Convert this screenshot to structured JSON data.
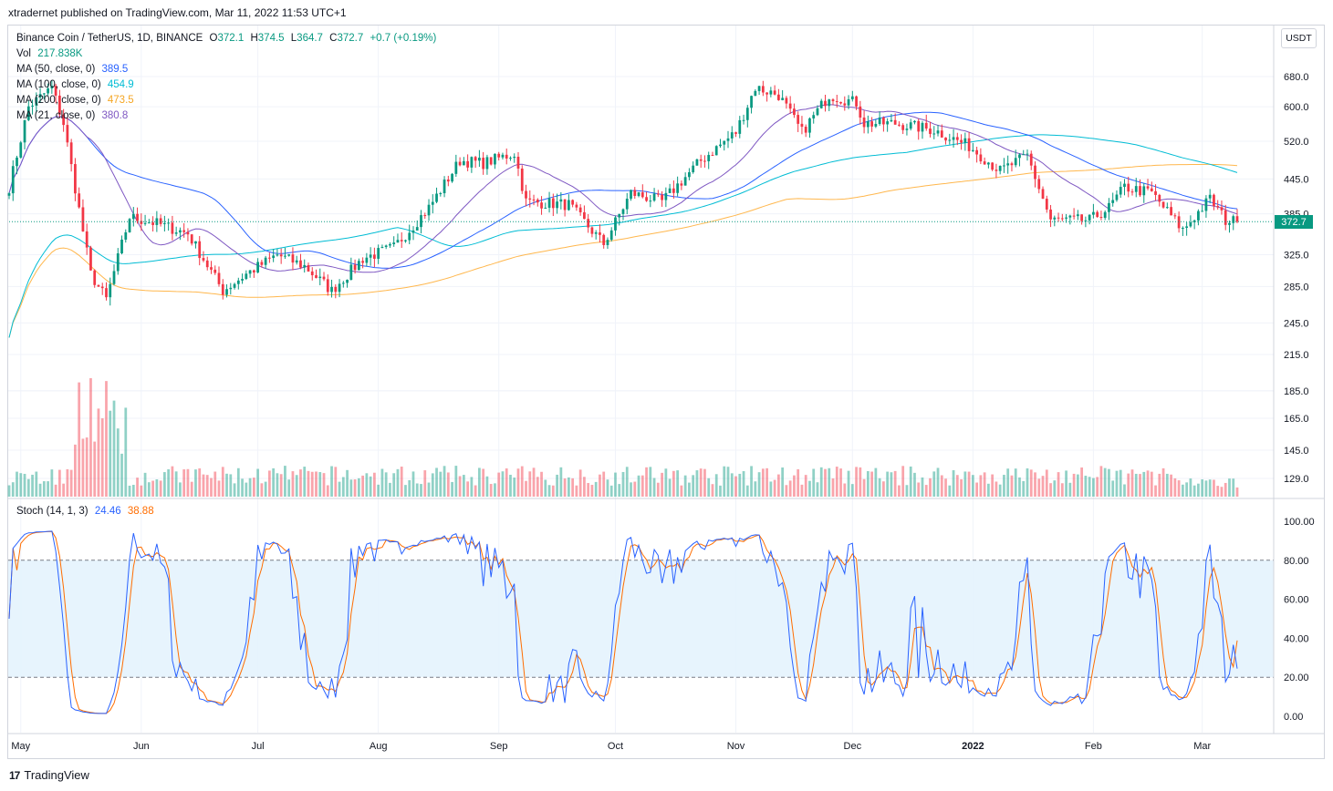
{
  "publisher": "xtradernet published on TradingView.com, Mar 11, 2022 11:53 UTC+1",
  "symbol": {
    "name": "Binance Coin / TetherUS, 1D, BINANCE",
    "open_label": "O",
    "open": "372.1",
    "high_label": "H",
    "high": "374.5",
    "low_label": "L",
    "low": "364.7",
    "close_label": "C",
    "close": "372.7",
    "change": "+0.7 (+0.19%)"
  },
  "indicators": {
    "vol_label": "Vol",
    "vol_value": "217.838K",
    "ma50_label": "MA (50, close, 0)",
    "ma50_value": "389.5",
    "ma100_label": "MA (100, close, 0)",
    "ma100_value": "454.9",
    "ma200_label": "MA (200, close, 0)",
    "ma200_value": "473.5",
    "ma21_label": "MA (21, close, 0)",
    "ma21_value": "380.8",
    "stoch_label": "Stoch (14, 1, 3)",
    "stoch_k_value": "24.46",
    "stoch_d_value": "38.88"
  },
  "currency_button": "USDT",
  "last_price_tag": "372.7",
  "footer": {
    "logo_glyph": "17",
    "brand": "TradingView"
  },
  "colors": {
    "up": "#089981",
    "down": "#f23645",
    "ma50": "#2962ff",
    "ma100": "#00bcd4",
    "ma200": "#ffb74d",
    "ma21": "#7e57c2",
    "stoch_k": "#2962ff",
    "stoch_d": "#ff6d00",
    "stoch_band": "#e3f2fd"
  },
  "chart_data": [
    {
      "type": "candlestick",
      "title": "Binance Coin / TetherUS, 1D, BINANCE",
      "y_scale": "log",
      "y_ticks": [
        "680.0",
        "600.0",
        "520.0",
        "445.0",
        "385.0",
        "325.0",
        "285.0",
        "245.0",
        "215.0",
        "185.0",
        "165.0",
        "145.0",
        "129.0"
      ],
      "x_labels": [
        "May",
        "Jun",
        "Jul",
        "Aug",
        "Sep",
        "Oct",
        "Nov",
        "Dec",
        "2022",
        "Feb",
        "Mar"
      ],
      "close_series_anchors": [
        [
          "2021-04-28",
          430
        ],
        [
          "2021-05-03",
          600
        ],
        [
          "2021-05-09",
          650
        ],
        [
          "2021-05-12",
          560
        ],
        [
          "2021-05-19",
          300
        ],
        [
          "2021-05-23",
          270
        ],
        [
          "2021-05-29",
          380
        ],
        [
          "2021-06-05",
          370
        ],
        [
          "2021-06-13",
          355
        ],
        [
          "2021-06-22",
          280
        ],
        [
          "2021-06-28",
          300
        ],
        [
          "2021-07-06",
          325
        ],
        [
          "2021-07-13",
          310
        ],
        [
          "2021-07-20",
          280
        ],
        [
          "2021-07-28",
          320
        ],
        [
          "2021-08-05",
          335
        ],
        [
          "2021-08-14",
          395
        ],
        [
          "2021-08-22",
          480
        ],
        [
          "2021-08-28",
          475
        ],
        [
          "2021-09-05",
          495
        ],
        [
          "2021-09-08",
          405
        ],
        [
          "2021-09-19",
          400
        ],
        [
          "2021-09-28",
          340
        ],
        [
          "2021-10-05",
          420
        ],
        [
          "2021-10-13",
          405
        ],
        [
          "2021-10-23",
          480
        ],
        [
          "2021-11-01",
          540
        ],
        [
          "2021-11-06",
          650
        ],
        [
          "2021-11-12",
          630
        ],
        [
          "2021-11-18",
          540
        ],
        [
          "2021-11-25",
          630
        ],
        [
          "2021-12-02",
          610
        ],
        [
          "2021-12-04",
          560
        ],
        [
          "2021-12-12",
          560
        ],
        [
          "2021-12-22",
          545
        ],
        [
          "2021-12-31",
          510
        ],
        [
          "2022-01-08",
          460
        ],
        [
          "2022-01-15",
          490
        ],
        [
          "2022-01-21",
          375
        ],
        [
          "2022-01-31",
          375
        ],
        [
          "2022-02-05",
          395
        ],
        [
          "2022-02-09",
          430
        ],
        [
          "2022-02-16",
          420
        ],
        [
          "2022-02-24",
          360
        ],
        [
          "2022-03-03",
          410
        ],
        [
          "2022-03-07",
          375
        ],
        [
          "2022-03-10",
          372.7
        ]
      ],
      "moving_averages": {
        "MA 50 end": 389.5,
        "MA 100 end": 454.9,
        "MA 200 end": 473.5,
        "MA 21 end": 380.8
      },
      "volume": {
        "last": "217.838K",
        "peak_date": "2021-05-19"
      }
    },
    {
      "type": "line",
      "title": "Stoch (14, 1, 3)",
      "y_ticks": [
        "100.00",
        "80.00",
        "60.00",
        "40.00",
        "20.00",
        "0.00"
      ],
      "band": [
        20,
        80
      ],
      "k_last": 24.46,
      "d_last": 38.88
    }
  ]
}
